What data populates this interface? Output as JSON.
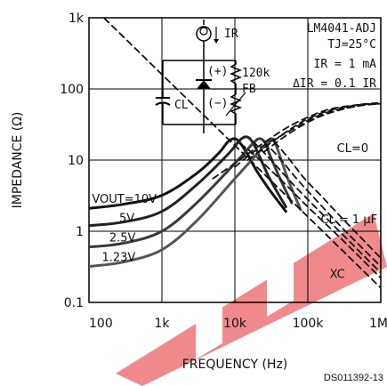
{
  "chart_data": {
    "type": "line",
    "title": "",
    "xlabel": "FREQUENCY (Hz)",
    "ylabel": "IMPEDANCE (Ω)",
    "x_scale": "log",
    "y_scale": "log",
    "xlim": [
      100,
      1000000
    ],
    "ylim": [
      0.1,
      1000
    ],
    "x_ticks": [
      {
        "value": 100,
        "label": "100"
      },
      {
        "value": 1000,
        "label": "1k"
      },
      {
        "value": 10000,
        "label": "10k"
      },
      {
        "value": 100000,
        "label": "100k"
      },
      {
        "value": 1000000,
        "label": "1M"
      }
    ],
    "y_ticks": [
      {
        "value": 0.1,
        "label": "0.1"
      },
      {
        "value": 1,
        "label": "1"
      },
      {
        "value": 10,
        "label": "10"
      },
      {
        "value": 100,
        "label": "100"
      },
      {
        "value": 1000,
        "label": "1k"
      }
    ],
    "grid": true,
    "conditions": [
      "LM4041-ADJ",
      "TJ=25°C",
      "IR = 1 mA",
      "ΔIR = 0.1 IR"
    ],
    "series": [
      {
        "name": "VOUT=10V",
        "style": "solid",
        "x": [
          100,
          300,
          1000,
          3000,
          6000,
          8000,
          10000,
          12000,
          15000,
          20000,
          30000,
          50000
        ],
        "y": [
          2.1,
          2.4,
          3.2,
          6.5,
          12.5,
          18.0,
          20.0,
          17.0,
          12.0,
          7.0,
          3.8,
          1.9
        ]
      },
      {
        "name": "5V",
        "style": "solid",
        "x": [
          100,
          300,
          1000,
          3000,
          8000,
          12000,
          15000,
          18000,
          22000,
          30000,
          50000
        ],
        "y": [
          1.2,
          1.35,
          1.9,
          4.5,
          12.0,
          19.5,
          21.0,
          17.0,
          11.0,
          5.5,
          2.2
        ]
      },
      {
        "name": "2.5V",
        "style": "solid",
        "x": [
          100,
          300,
          1000,
          3000,
          10000,
          18000,
          22000,
          26000,
          30000,
          40000,
          60000
        ],
        "y": [
          0.6,
          0.68,
          1.0,
          2.5,
          9.0,
          17.5,
          20.0,
          17.5,
          12.0,
          6.0,
          2.5
        ]
      },
      {
        "name": "1.23V",
        "style": "solid",
        "x": [
          100,
          300,
          1000,
          3000,
          10000,
          25000,
          32000,
          36000,
          42000,
          55000,
          80000
        ],
        "y": [
          0.32,
          0.37,
          0.55,
          1.4,
          5.5,
          15.5,
          20.0,
          17.0,
          11.0,
          5.0,
          2.0
        ]
      },
      {
        "name": "XC",
        "style": "dashed",
        "x": [
          100,
          1000000
        ],
        "y": [
          1600,
          0.16
        ]
      },
      {
        "name": "CL=0",
        "style": "dashed",
        "x": [
          5000,
          10000,
          20000,
          50000,
          100000,
          200000,
          500000,
          1000000
        ],
        "y": [
          5.5,
          9.0,
          15.0,
          28.0,
          40.0,
          52.0,
          60.0,
          62.0
        ]
      },
      {
        "name": "CL=0",
        "style": "dashed",
        "x": [
          10000,
          20000,
          50000,
          100000,
          200000,
          500000,
          1000000
        ],
        "y": [
          8.0,
          14.0,
          24.0,
          36.0,
          48.0,
          58.0,
          62.0
        ]
      },
      {
        "name": "CL=0",
        "style": "dashed",
        "x": [
          15000,
          30000,
          60000,
          100000,
          200000,
          500000,
          1000000
        ],
        "y": [
          10.0,
          17.0,
          28.0,
          38.0,
          50.0,
          60.0,
          64.0
        ]
      },
      {
        "name": "CL=0",
        "style": "dashed",
        "x": [
          25000,
          50000,
          100000,
          200000,
          500000,
          1000000
        ],
        "y": [
          13.0,
          22.0,
          34.0,
          46.0,
          58.0,
          62.0
        ]
      },
      {
        "name": "CL = 1 μF",
        "style": "dashed",
        "x": [
          12000,
          20000,
          50000,
          100000,
          300000,
          1000000
        ],
        "y": [
          17.0,
          11.0,
          4.5,
          2.2,
          0.75,
          0.22
        ]
      },
      {
        "name": "CL = 1 μF",
        "style": "dashed",
        "x": [
          18000,
          30000,
          60000,
          100000,
          300000,
          1000000
        ],
        "y": [
          18.0,
          10.5,
          4.8,
          2.8,
          0.9,
          0.26
        ]
      },
      {
        "name": "CL = 1 μF",
        "style": "dashed",
        "x": [
          25000,
          40000,
          70000,
          120000,
          300000,
          1000000
        ],
        "y": [
          18.0,
          11.0,
          5.5,
          3.0,
          1.1,
          0.32
        ]
      },
      {
        "name": "CL = 1 μF",
        "style": "dashed",
        "x": [
          35000,
          55000,
          90000,
          150000,
          300000,
          1000000
        ],
        "y": [
          18.0,
          10.5,
          5.5,
          3.2,
          1.5,
          0.42
        ]
      }
    ],
    "annotations": [
      {
        "text": "VOUT=10V",
        "x": 110,
        "y": 2.5
      },
      {
        "text": "5V",
        "x": 260,
        "y": 1.35
      },
      {
        "text": "2.5V",
        "x": 190,
        "y": 0.72
      },
      {
        "text": "1.23V",
        "x": 150,
        "y": 0.38
      },
      {
        "text": "CL=0",
        "x": 250000,
        "y": 13
      },
      {
        "text": "CL = 1 μF",
        "x": 150000,
        "y": 1.3
      },
      {
        "text": "XC",
        "x": 200000,
        "y": 0.22
      }
    ]
  },
  "schematic": {
    "labels": [
      "IR",
      "(+)",
      "120k",
      "FB",
      "(−)",
      "CL"
    ]
  },
  "doc_id": "DS011392-13"
}
